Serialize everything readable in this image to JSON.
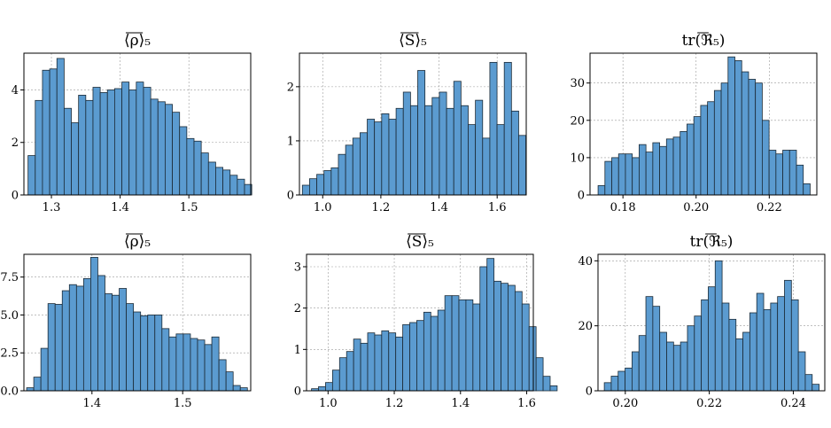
{
  "chart_data": [
    {
      "type": "bar",
      "title": "⟨ρ⟩₅",
      "overline": true,
      "xlim": [
        1.26,
        1.59
      ],
      "ylim": [
        0,
        5.4
      ],
      "xticks": [
        1.3,
        1.4,
        1.5
      ],
      "xtick_labels": [
        "1.3",
        "1.4",
        "1.5"
      ],
      "yticks": [
        0,
        2,
        4
      ],
      "ytick_labels": [
        "0",
        "2",
        "4"
      ],
      "bin_start": 1.266,
      "bin_width": 0.0105,
      "values": [
        1.5,
        3.6,
        4.75,
        4.8,
        5.2,
        3.3,
        2.75,
        3.8,
        3.6,
        4.1,
        3.9,
        4.0,
        4.05,
        4.3,
        4.0,
        4.3,
        4.1,
        3.65,
        3.55,
        3.45,
        3.15,
        2.6,
        2.15,
        2.05,
        1.6,
        1.25,
        1.05,
        0.95,
        0.75,
        0.6,
        0.4
      ]
    },
    {
      "type": "bar",
      "title": "⟨S⟩₅",
      "overline": true,
      "xlim": [
        0.92,
        1.7
      ],
      "ylim": [
        0,
        2.62
      ],
      "xticks": [
        1.0,
        1.2,
        1.4,
        1.6
      ],
      "xtick_labels": [
        "1.0",
        "1.2",
        "1.4",
        "1.6"
      ],
      "yticks": [
        0,
        1,
        2
      ],
      "ytick_labels": [
        "0",
        "1",
        "2"
      ],
      "bin_start": 0.93,
      "bin_width": 0.0248,
      "values": [
        0.18,
        0.3,
        0.38,
        0.45,
        0.5,
        0.75,
        0.92,
        1.05,
        1.15,
        1.4,
        1.35,
        1.5,
        1.4,
        1.6,
        1.9,
        1.65,
        2.3,
        1.65,
        1.8,
        1.9,
        1.6,
        2.1,
        1.65,
        1.3,
        1.75,
        1.05,
        2.45,
        1.3,
        2.45,
        1.55,
        1.1
      ]
    },
    {
      "type": "bar",
      "title": "tr(ℜ₅)",
      "overline_symbol": true,
      "xlim": [
        0.171,
        0.233
      ],
      "ylim": [
        0,
        38
      ],
      "xticks": [
        0.18,
        0.2,
        0.22
      ],
      "xtick_labels": [
        "0.18",
        "0.20",
        "0.22"
      ],
      "yticks": [
        0,
        10,
        20,
        30
      ],
      "ytick_labels": [
        "0",
        "10",
        "20",
        "30"
      ],
      "bin_start": 0.1732,
      "bin_width": 0.00187,
      "values": [
        2.5,
        9,
        10,
        11,
        11,
        10,
        13.5,
        11.5,
        14,
        13,
        15,
        15.5,
        17,
        19,
        21,
        24,
        25,
        28,
        30,
        37,
        36,
        33,
        31,
        30,
        20,
        12,
        11,
        12,
        12,
        8,
        3
      ]
    },
    {
      "type": "bar",
      "title": "⟨ρ⟩₅",
      "overline": true,
      "xlim": [
        1.325,
        1.575
      ],
      "ylim": [
        0,
        9
      ],
      "xticks": [
        1.4,
        1.5
      ],
      "xtick_labels": [
        "1.4",
        "1.5"
      ],
      "yticks": [
        0,
        2.5,
        5,
        7.5
      ],
      "ytick_labels": [
        "0.0",
        "2.5",
        "5.0",
        "7.5"
      ],
      "bin_start": 1.328,
      "bin_width": 0.00785,
      "values": [
        0.2,
        0.9,
        2.8,
        5.75,
        5.7,
        6.6,
        7.0,
        6.9,
        7.4,
        8.8,
        7.6,
        6.4,
        6.3,
        6.75,
        5.75,
        5.2,
        4.95,
        5.0,
        5.0,
        4.1,
        3.55,
        3.75,
        3.75,
        3.45,
        3.35,
        3.05,
        3.55,
        2.05,
        1.25,
        0.35,
        0.2
      ]
    },
    {
      "type": "bar",
      "title": "⟨S⟩₅",
      "overline": true,
      "xlim": [
        0.935,
        1.62
      ],
      "ylim": [
        0,
        3.3
      ],
      "xticks": [
        1.0,
        1.2,
        1.4,
        1.6
      ],
      "xtick_labels": [
        "1.0",
        "1.2",
        "1.4",
        "1.6"
      ],
      "yticks": [
        0,
        1,
        2,
        3
      ],
      "ytick_labels": [
        "0",
        "1",
        "2",
        "3"
      ],
      "bin_start": 0.95,
      "bin_width": 0.0212,
      "values": [
        0.05,
        0.1,
        0.2,
        0.5,
        0.8,
        0.95,
        1.25,
        1.15,
        1.4,
        1.35,
        1.45,
        1.4,
        1.3,
        1.6,
        1.65,
        1.7,
        1.9,
        1.8,
        1.95,
        2.3,
        2.3,
        2.2,
        2.2,
        2.1,
        3.0,
        3.2,
        2.65,
        2.6,
        2.55,
        2.4,
        2.1,
        1.55,
        0.8,
        0.35,
        0.12
      ]
    },
    {
      "type": "bar",
      "title": "tr(ℜ₅)",
      "overline_symbol": true,
      "xlim": [
        0.1935,
        0.2475
      ],
      "ylim": [
        0,
        42
      ],
      "xticks": [
        0.2,
        0.22,
        0.24
      ],
      "xtick_labels": [
        "0.20",
        "0.22",
        "0.24"
      ],
      "yticks": [
        0,
        20,
        40
      ],
      "ytick_labels": [
        "0",
        "20",
        "40"
      ],
      "bin_start": 0.195,
      "bin_width": 0.00165,
      "values": [
        2.5,
        4.5,
        6.0,
        7.0,
        12,
        17,
        29,
        26,
        18,
        15,
        14,
        15,
        20,
        23,
        28,
        32,
        40,
        27,
        22,
        16,
        18,
        24,
        30,
        25,
        27,
        29,
        34,
        28,
        12,
        5,
        2
      ]
    }
  ]
}
